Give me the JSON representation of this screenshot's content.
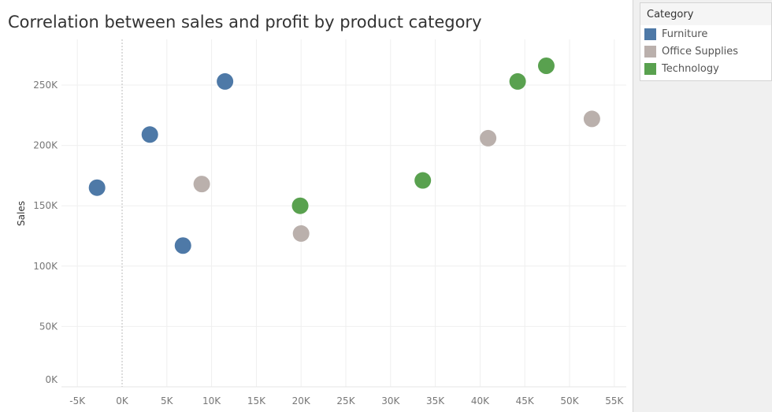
{
  "chart_data": {
    "type": "scatter",
    "title": "Correlation between sales and profit by product category",
    "xlabel": "",
    "ylabel": "Sales",
    "xlim": [
      -7,
      56.5
    ],
    "ylim": [
      0,
      288
    ],
    "x_ticks": [
      -5,
      0,
      5,
      10,
      15,
      20,
      25,
      30,
      35,
      40,
      45,
      50,
      55
    ],
    "x_tick_labels": [
      "-5K",
      "0K",
      "5K",
      "10K",
      "15K",
      "20K",
      "25K",
      "30K",
      "35K",
      "40K",
      "45K",
      "50K",
      "55K"
    ],
    "y_ticks": [
      0,
      50,
      100,
      150,
      200,
      250
    ],
    "y_tick_labels": [
      "0K",
      "50K",
      "100K",
      "150K",
      "200K",
      "250K"
    ],
    "units": "thousands",
    "grid": true,
    "legend_title": "Category",
    "legend_position": "right",
    "series": [
      {
        "name": "Furniture",
        "color": "#4e79a7",
        "points": [
          [
            -2.8,
            165
          ],
          [
            3.1,
            209
          ],
          [
            6.8,
            117
          ],
          [
            11.5,
            253
          ]
        ]
      },
      {
        "name": "Office Supplies",
        "color": "#bab0ac",
        "points": [
          [
            8.9,
            168
          ],
          [
            20.0,
            127
          ],
          [
            40.9,
            206
          ],
          [
            52.5,
            222
          ]
        ]
      },
      {
        "name": "Technology",
        "color": "#59a14f",
        "points": [
          [
            19.9,
            150
          ],
          [
            33.6,
            171
          ],
          [
            44.2,
            253
          ],
          [
            47.4,
            266
          ]
        ]
      }
    ]
  }
}
